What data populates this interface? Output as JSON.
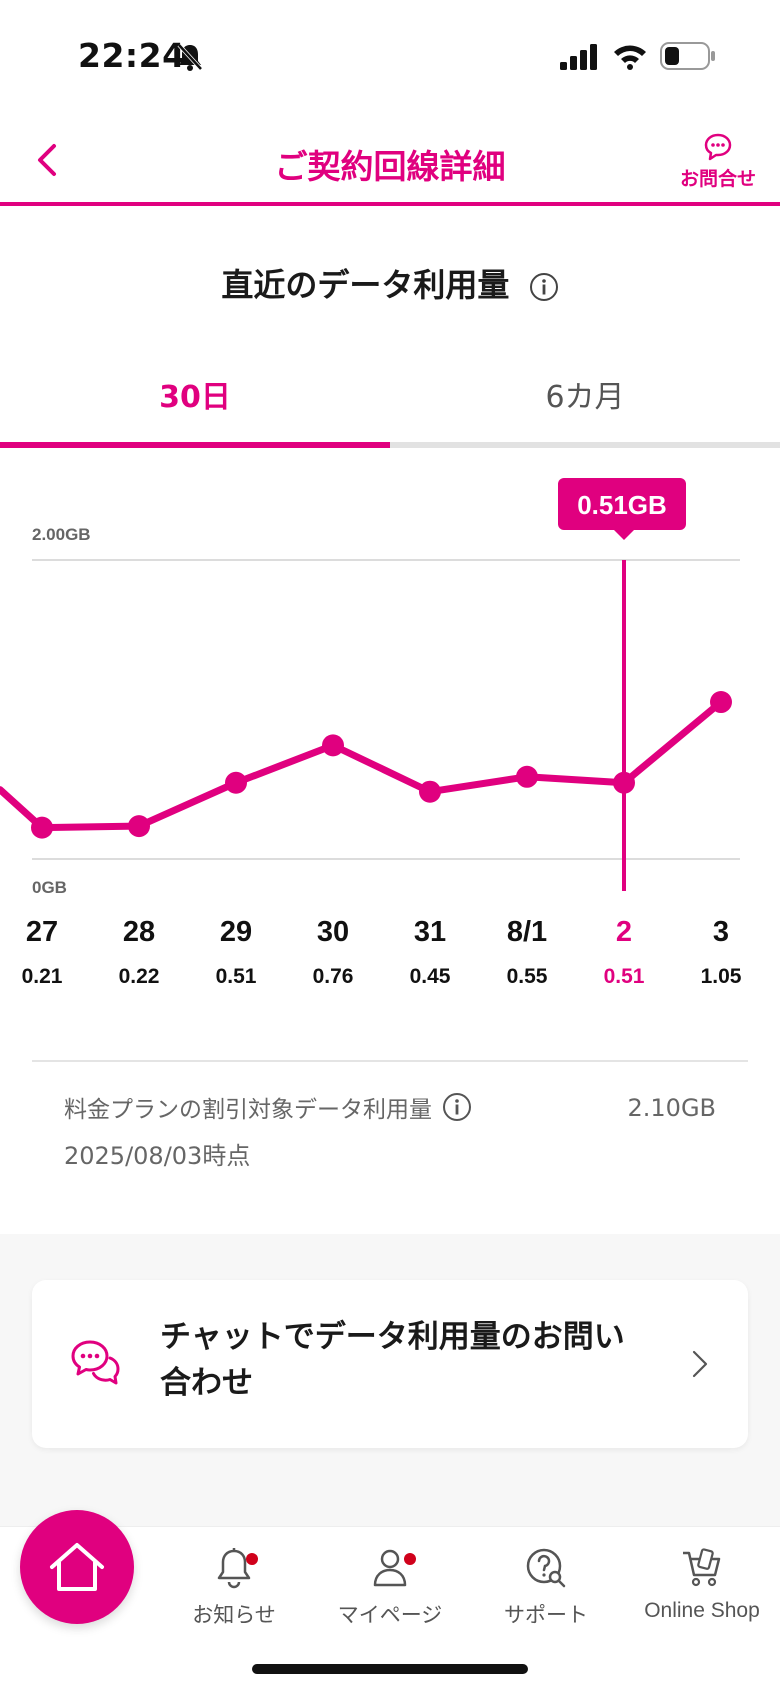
{
  "status_bar": {
    "time": "22:24"
  },
  "header": {
    "title": "ご契約回線詳細",
    "contact_label": "お問合せ"
  },
  "usage": {
    "section_title": "直近のデータ利用量",
    "tabs": [
      {
        "label": "30日",
        "active": true
      },
      {
        "label": "6カ月",
        "active": false
      }
    ],
    "plan_label": "料金プランの割引対象データ利用量",
    "plan_value": "2.10GB",
    "plan_date": "2025/08/03時点"
  },
  "chart_data": {
    "type": "line",
    "y_max_label": "2.00GB",
    "y_min_label": "0GB",
    "ylim": [
      0,
      2.0
    ],
    "unit": "GB",
    "days": [
      {
        "day": "27",
        "value": 0.21,
        "value_label": "0.21"
      },
      {
        "day": "28",
        "value": 0.22,
        "value_label": "0.22"
      },
      {
        "day": "29",
        "value": 0.51,
        "value_label": "0.51"
      },
      {
        "day": "30",
        "value": 0.76,
        "value_label": "0.76"
      },
      {
        "day": "31",
        "value": 0.45,
        "value_label": "0.45"
      },
      {
        "day": "8/1",
        "value": 0.55,
        "value_label": "0.55"
      },
      {
        "day": "2",
        "value": 0.51,
        "value_label": "0.51"
      },
      {
        "day": "3",
        "value": 1.05,
        "value_label": "1.05"
      }
    ],
    "selected_index": 6,
    "tooltip": "0.51GB",
    "accent_color": "#e0007f"
  },
  "chat": {
    "text_line1": "チャットでデータ利用量のお問い",
    "text_line2": "合わせ"
  },
  "bottom_nav": {
    "items": [
      {
        "label": "お知らせ"
      },
      {
        "label": "マイページ"
      },
      {
        "label": "サポート"
      },
      {
        "label": "Online Shop"
      }
    ]
  },
  "colors": {
    "accent": "#e0007f",
    "notification_dot": "#d0011b"
  }
}
